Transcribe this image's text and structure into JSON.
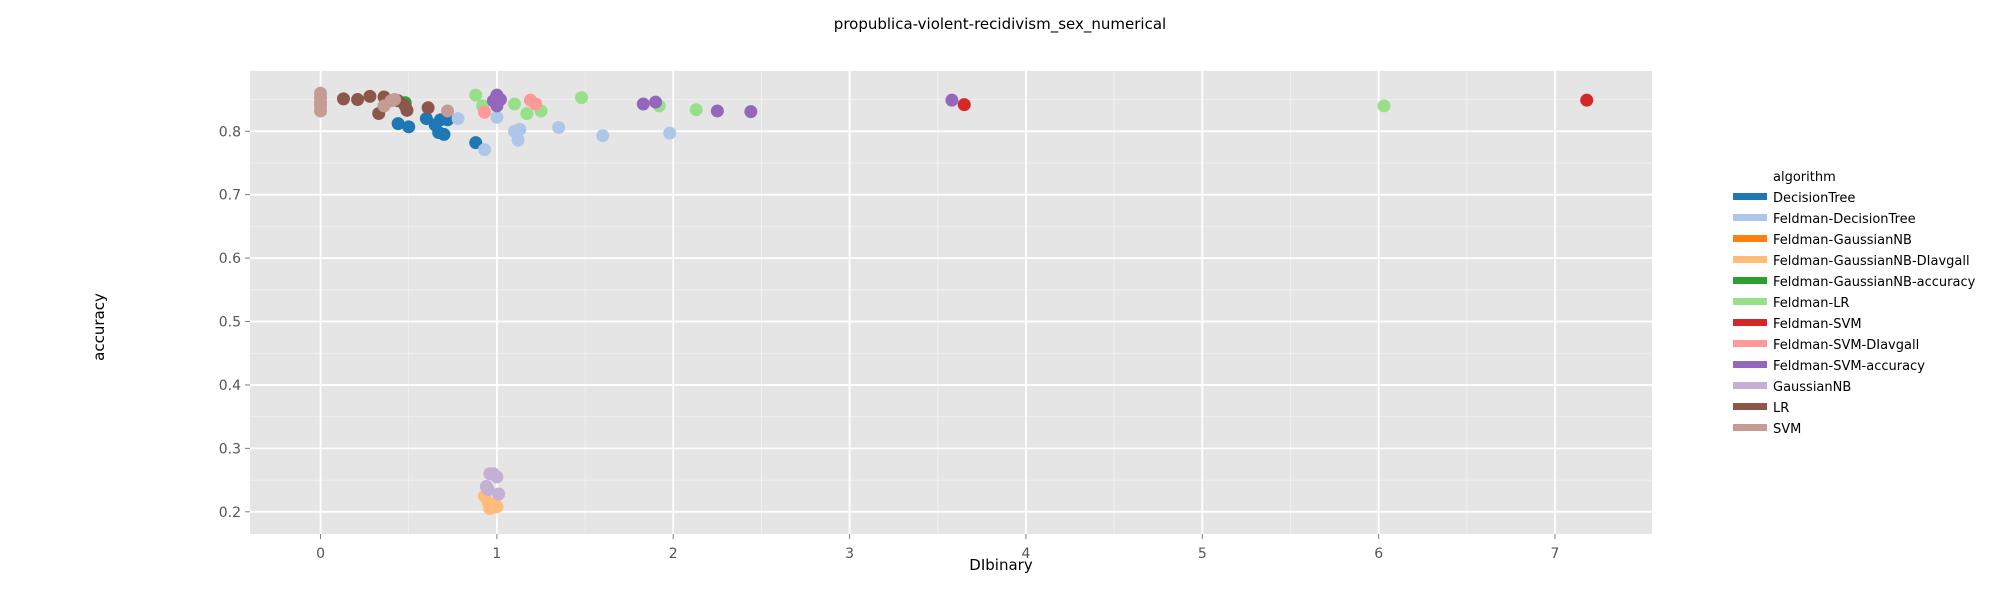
{
  "chart_data": {
    "type": "scatter",
    "title": "propublica-violent-recidivism_sex_numerical",
    "xlabel": "DIbinary",
    "ylabel": "accuracy",
    "xlim": [
      -0.4,
      7.55
    ],
    "ylim": [
      0.165,
      0.895
    ],
    "x_ticks": [
      0,
      1,
      2,
      3,
      4,
      5,
      6,
      7
    ],
    "y_ticks": [
      0.2,
      0.3,
      0.4,
      0.5,
      0.6,
      0.7,
      0.8
    ],
    "grid": true,
    "legend_title": "algorithm",
    "legend_position": "right",
    "series": [
      {
        "name": "DecisionTree",
        "color": "#1f77b4",
        "points": [
          [
            0.44,
            0.812
          ],
          [
            0.5,
            0.807
          ],
          [
            0.6,
            0.82
          ],
          [
            0.65,
            0.81
          ],
          [
            0.67,
            0.798
          ],
          [
            0.68,
            0.818
          ],
          [
            0.7,
            0.795
          ],
          [
            0.72,
            0.818
          ],
          [
            0.88,
            0.782
          ]
        ]
      },
      {
        "name": "Feldman-DecisionTree",
        "color": "#aec7e8",
        "points": [
          [
            0.78,
            0.82
          ],
          [
            0.93,
            0.771
          ],
          [
            1.0,
            0.822
          ],
          [
            1.1,
            0.8
          ],
          [
            1.12,
            0.786
          ],
          [
            1.13,
            0.803
          ],
          [
            1.35,
            0.806
          ],
          [
            1.6,
            0.793
          ],
          [
            1.98,
            0.797
          ]
        ]
      },
      {
        "name": "Feldman-GaussianNB",
        "color": "#ff7f0e",
        "points": []
      },
      {
        "name": "Feldman-GaussianNB-DIavgall",
        "color": "#ffbb78",
        "points": [
          [
            0.93,
            0.225
          ],
          [
            0.95,
            0.215
          ],
          [
            0.96,
            0.205
          ],
          [
            0.97,
            0.21
          ],
          [
            0.99,
            0.212
          ],
          [
            1.0,
            0.208
          ]
        ]
      },
      {
        "name": "Feldman-GaussianNB-accuracy",
        "color": "#2ca02c",
        "points": [
          [
            0.48,
            0.845
          ]
        ]
      },
      {
        "name": "Feldman-LR",
        "color": "#98df8a",
        "points": [
          [
            0.88,
            0.857
          ],
          [
            0.92,
            0.84
          ],
          [
            1.1,
            0.843
          ],
          [
            1.17,
            0.828
          ],
          [
            1.25,
            0.832
          ],
          [
            1.48,
            0.853
          ],
          [
            1.92,
            0.84
          ],
          [
            2.13,
            0.834
          ],
          [
            6.03,
            0.84
          ]
        ]
      },
      {
        "name": "Feldman-SVM",
        "color": "#d62728",
        "points": [
          [
            3.65,
            0.842
          ],
          [
            7.18,
            0.849
          ]
        ]
      },
      {
        "name": "Feldman-SVM-DIavgall",
        "color": "#ff9896",
        "points": [
          [
            0.93,
            0.83
          ],
          [
            1.19,
            0.849
          ],
          [
            1.22,
            0.843
          ]
        ]
      },
      {
        "name": "Feldman-SVM-accuracy",
        "color": "#9467bd",
        "points": [
          [
            0.98,
            0.848
          ],
          [
            1.0,
            0.857
          ],
          [
            1.0,
            0.84
          ],
          [
            1.02,
            0.85
          ],
          [
            1.83,
            0.843
          ],
          [
            1.9,
            0.846
          ],
          [
            2.25,
            0.832
          ],
          [
            2.44,
            0.831
          ],
          [
            3.58,
            0.849
          ]
        ]
      },
      {
        "name": "GaussianNB",
        "color": "#c5b0d5",
        "points": [
          [
            0.94,
            0.24
          ],
          [
            0.96,
            0.26
          ],
          [
            0.98,
            0.26
          ],
          [
            1.0,
            0.255
          ],
          [
            1.01,
            0.228
          ],
          [
            0.95,
            0.235
          ]
        ]
      },
      {
        "name": "LR",
        "color": "#8c564b",
        "points": [
          [
            0.13,
            0.851
          ],
          [
            0.21,
            0.85
          ],
          [
            0.28,
            0.855
          ],
          [
            0.36,
            0.854
          ],
          [
            0.33,
            0.828
          ],
          [
            0.44,
            0.848
          ],
          [
            0.48,
            0.84
          ],
          [
            0.49,
            0.833
          ],
          [
            0.61,
            0.837
          ]
        ]
      },
      {
        "name": "SVM",
        "color": "#c49c94",
        "points": [
          [
            0.0,
            0.86
          ],
          [
            0.0,
            0.852
          ],
          [
            0.0,
            0.845
          ],
          [
            0.0,
            0.84
          ],
          [
            0.0,
            0.832
          ],
          [
            0.36,
            0.84
          ],
          [
            0.4,
            0.848
          ],
          [
            0.42,
            0.85
          ],
          [
            0.72,
            0.832
          ]
        ]
      }
    ]
  }
}
